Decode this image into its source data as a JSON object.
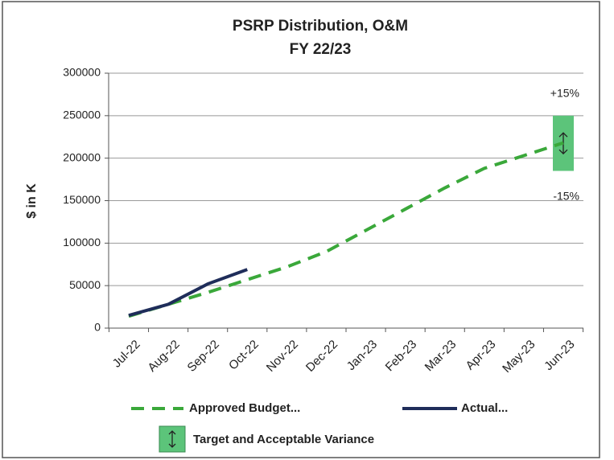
{
  "chart_data": {
    "type": "line",
    "title": "PSRP Distribution, O&M",
    "subtitle": "FY 22/23",
    "y_label": "$ in K",
    "categories": [
      "Jul-22",
      "Aug-22",
      "Sep-22",
      "Oct-22",
      "Nov-22",
      "Dec-22",
      "Jan-23",
      "Feb-23",
      "Mar-23",
      "Apr-23",
      "May-23",
      "Jun-23"
    ],
    "series": [
      {
        "name": "Approved Budget...",
        "color": "#3aa83a",
        "dashed": true,
        "values": [
          14000,
          28000,
          42000,
          57000,
          72000,
          90000,
          115000,
          140000,
          165000,
          188000,
          203000,
          218000
        ]
      },
      {
        "name": "Actual...",
        "color": "#1f2d5a",
        "dashed": false,
        "values": [
          15000,
          28000,
          52000,
          69000,
          null,
          null,
          null,
          null,
          null,
          null,
          null,
          null
        ]
      }
    ],
    "target_band": {
      "name": "Target and Acceptable Variance",
      "color": "#5cc47a",
      "low": 185000,
      "high": 250000
    },
    "annotations": [
      "+15%",
      "-15%"
    ],
    "ylim": [
      0,
      300000
    ],
    "yticks": [
      0,
      50000,
      100000,
      150000,
      200000,
      250000,
      300000
    ],
    "grid": true
  }
}
